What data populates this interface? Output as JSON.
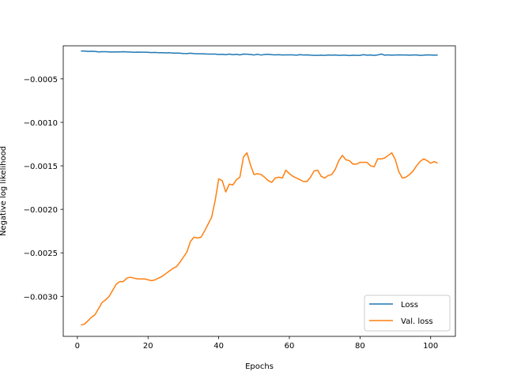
{
  "chart_data": {
    "type": "line",
    "title": "",
    "xlabel": "Epochs",
    "ylabel": "Negative log likelihood",
    "xlim": [
      -4.0,
      107.0
    ],
    "ylim": [
      -0.00346,
      -0.00012
    ],
    "xticks": [
      0,
      20,
      40,
      60,
      80,
      100
    ],
    "xtick_labels": [
      "0",
      "20",
      "40",
      "60",
      "80",
      "100"
    ],
    "yticks": [
      -0.0005,
      -0.001,
      -0.0015,
      -0.002,
      -0.0025,
      -0.003
    ],
    "ytick_labels": [
      "−0.0005",
      "−0.0010",
      "−0.0015",
      "−0.0020",
      "−0.0025",
      "−0.0030"
    ],
    "grid": false,
    "legend_position": "lower right",
    "series": [
      {
        "name": "Loss",
        "color": "#1f77b4",
        "x": [
          1,
          2,
          3,
          4,
          5,
          6,
          7,
          8,
          9,
          10,
          11,
          12,
          13,
          14,
          15,
          16,
          17,
          18,
          19,
          20,
          21,
          22,
          23,
          24,
          25,
          26,
          27,
          28,
          29,
          30,
          31,
          32,
          33,
          34,
          35,
          36,
          37,
          38,
          39,
          40,
          41,
          42,
          43,
          44,
          45,
          46,
          47,
          48,
          49,
          50,
          51,
          52,
          53,
          54,
          55,
          56,
          57,
          58,
          59,
          60,
          61,
          62,
          63,
          64,
          65,
          66,
          67,
          68,
          69,
          70,
          71,
          72,
          73,
          74,
          75,
          76,
          77,
          78,
          79,
          80,
          81,
          82,
          83,
          84,
          85,
          86,
          87,
          88,
          89,
          90,
          91,
          92,
          93,
          94,
          95,
          96,
          97,
          98,
          99,
          100,
          101,
          102
        ],
        "y": [
          -0.00018,
          -0.00018,
          -0.000185,
          -0.000182,
          -0.000185,
          -0.00019,
          -0.000188,
          -0.000188,
          -0.00019,
          -0.000192,
          -0.00019,
          -0.00019,
          -0.000188,
          -0.00019,
          -0.000192,
          -0.000195,
          -0.000193,
          -0.000194,
          -0.000194,
          -0.000195,
          -0.000198,
          -0.000196,
          -0.0002,
          -0.0002,
          -0.000202,
          -0.0002,
          -0.000204,
          -0.000204,
          -0.000205,
          -0.000208,
          -0.00021,
          -0.000205,
          -0.00021,
          -0.000212,
          -0.000212,
          -0.000213,
          -0.000215,
          -0.000215,
          -0.000215,
          -0.00022,
          -0.000218,
          -0.000222,
          -0.000215,
          -0.000222,
          -0.000218,
          -0.000224,
          -0.000215,
          -0.000216,
          -0.00022,
          -0.000225,
          -0.000218,
          -0.000226,
          -0.00022,
          -0.000218,
          -0.000222,
          -0.000224,
          -0.000222,
          -0.000225,
          -0.000224,
          -0.000224,
          -0.000224,
          -0.000228,
          -0.000222,
          -0.000225,
          -0.000224,
          -0.000228,
          -0.00023,
          -0.00023,
          -0.000228,
          -0.00023,
          -0.000226,
          -0.000228,
          -0.000225,
          -0.00023,
          -0.000228,
          -0.000228,
          -0.000232,
          -0.000228,
          -0.00023,
          -0.00023,
          -0.000222,
          -0.000228,
          -0.000226,
          -0.00023,
          -0.000225,
          -0.000215,
          -0.000228,
          -0.000224,
          -0.000228,
          -0.000226,
          -0.000224,
          -0.000226,
          -0.000226,
          -0.000228,
          -0.000226,
          -0.000226,
          -0.00023,
          -0.000228,
          -0.000224,
          -0.000226,
          -0.000228,
          -0.000226
        ]
      },
      {
        "name": "Val. loss",
        "color": "#ff7f0e",
        "x": [
          1,
          2,
          3,
          4,
          5,
          6,
          7,
          8,
          9,
          10,
          11,
          12,
          13,
          14,
          15,
          16,
          17,
          18,
          19,
          20,
          21,
          22,
          23,
          24,
          25,
          26,
          27,
          28,
          29,
          30,
          31,
          32,
          33,
          34,
          35,
          36,
          37,
          38,
          39,
          40,
          41,
          42,
          43,
          44,
          45,
          46,
          47,
          48,
          49,
          50,
          51,
          52,
          53,
          54,
          55,
          56,
          57,
          58,
          59,
          60,
          61,
          62,
          63,
          64,
          65,
          66,
          67,
          68,
          69,
          70,
          71,
          72,
          73,
          74,
          75,
          76,
          77,
          78,
          79,
          80,
          81,
          82,
          83,
          84,
          85,
          86,
          87,
          88,
          89,
          90,
          91,
          92,
          93,
          94,
          95,
          96,
          97,
          98,
          99,
          100,
          101,
          102
        ],
        "y": [
          -0.00333,
          -0.00332,
          -0.00328,
          -0.00324,
          -0.00321,
          -0.00314,
          -0.00307,
          -0.00304,
          -0.003,
          -0.00293,
          -0.00286,
          -0.00283,
          -0.00283,
          -0.00279,
          -0.00278,
          -0.00279,
          -0.0028,
          -0.0028,
          -0.0028,
          -0.00281,
          -0.00282,
          -0.00281,
          -0.00279,
          -0.00277,
          -0.00274,
          -0.00271,
          -0.00268,
          -0.00266,
          -0.00261,
          -0.00255,
          -0.00249,
          -0.00237,
          -0.00232,
          -0.00233,
          -0.00232,
          -0.00225,
          -0.00217,
          -0.00209,
          -0.0019,
          -0.00165,
          -0.00167,
          -0.0018,
          -0.00171,
          -0.00172,
          -0.00166,
          -0.00163,
          -0.0014,
          -0.00135,
          -0.00149,
          -0.0016,
          -0.00159,
          -0.0016,
          -0.00163,
          -0.00167,
          -0.00169,
          -0.00164,
          -0.00163,
          -0.00164,
          -0.00155,
          -0.00159,
          -0.00162,
          -0.00164,
          -0.00166,
          -0.00168,
          -0.00168,
          -0.00163,
          -0.00156,
          -0.00155,
          -0.00162,
          -0.00164,
          -0.00161,
          -0.0016,
          -0.00154,
          -0.00144,
          -0.00138,
          -0.00143,
          -0.00144,
          -0.00148,
          -0.00148,
          -0.00146,
          -0.00146,
          -0.00146,
          -0.0015,
          -0.00151,
          -0.00142,
          -0.00142,
          -0.00141,
          -0.00138,
          -0.00135,
          -0.00143,
          -0.00157,
          -0.00164,
          -0.00163,
          -0.0016,
          -0.00156,
          -0.0015,
          -0.00145,
          -0.00142,
          -0.00144,
          -0.00147,
          -0.00145,
          -0.00147
        ]
      }
    ]
  }
}
